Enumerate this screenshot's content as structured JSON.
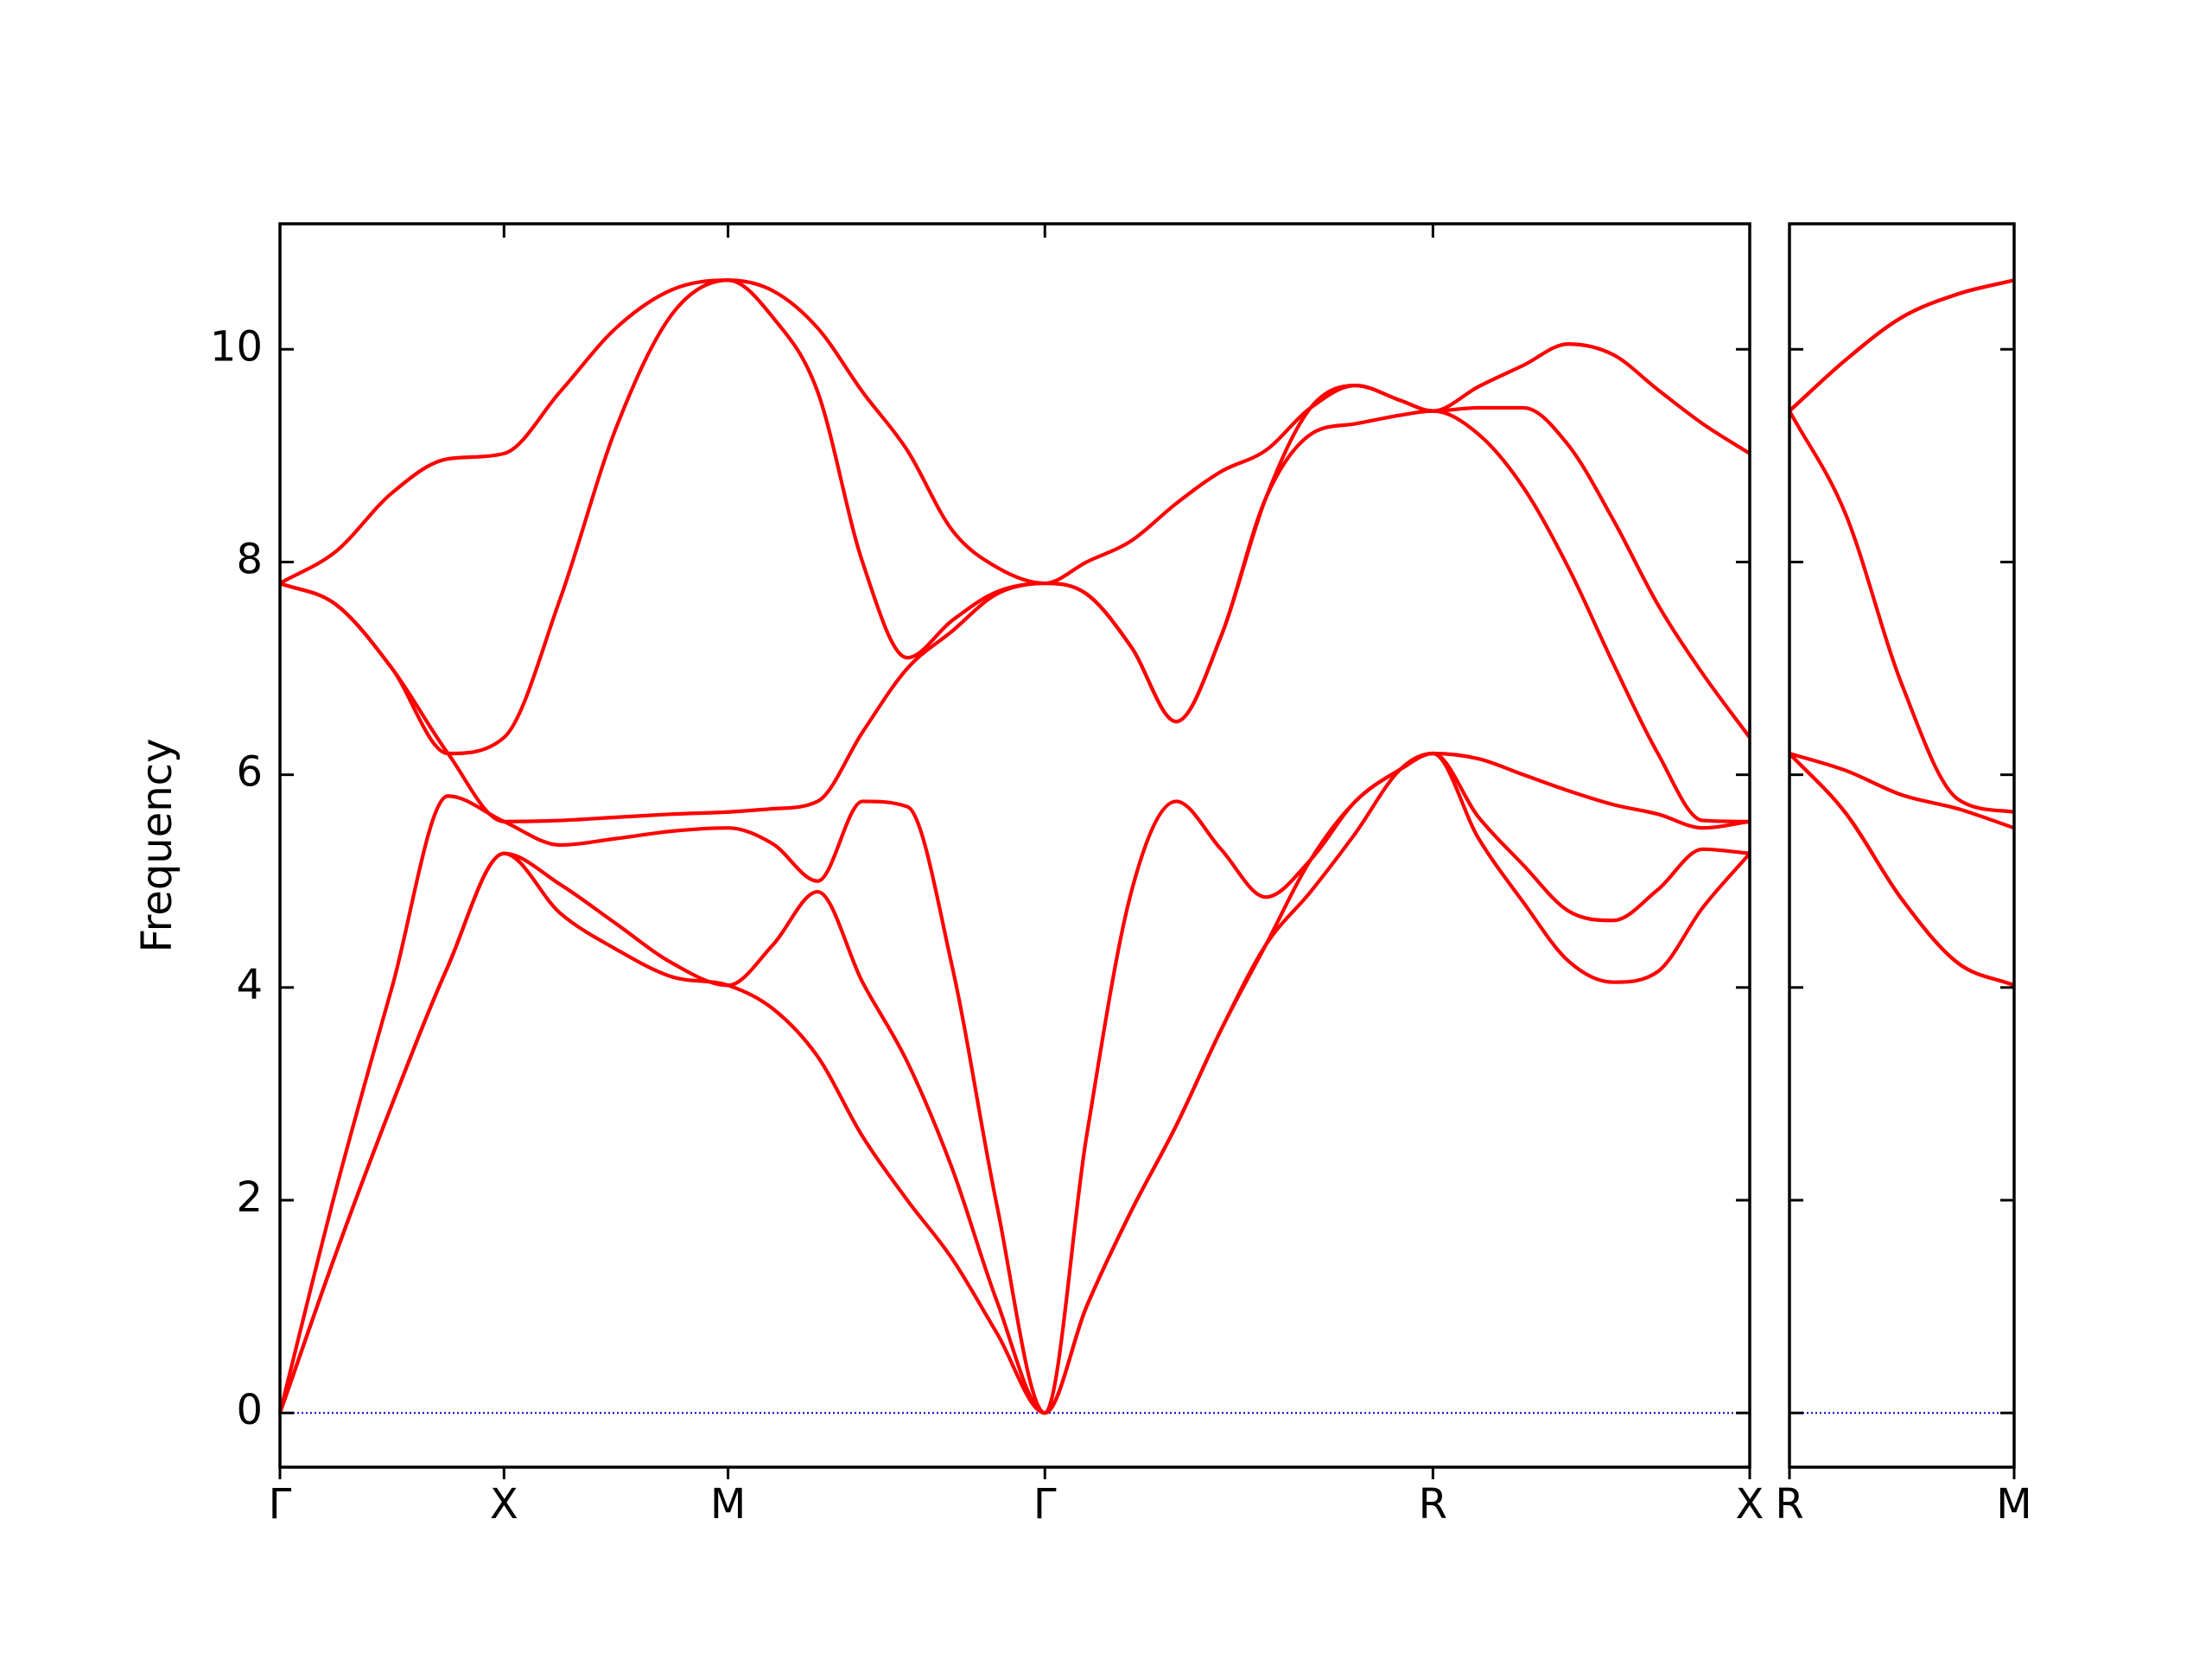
{
  "chart_data": [
    {
      "type": "line",
      "ylabel": "Frequency",
      "x": [
        0,
        0.25,
        0.5,
        0.75,
        1,
        1.25,
        1.5,
        1.75,
        2,
        2.2,
        2.4,
        2.6,
        2.8,
        3.0,
        3.2,
        3.414,
        3.6,
        3.8,
        4.0,
        4.2,
        4.4,
        4.6,
        4.8,
        5.0,
        5.146,
        5.35,
        5.55,
        5.75,
        5.95,
        6.15,
        6.35,
        6.56
      ],
      "series": [
        {
          "color": "#ff0000",
          "values": [
            0,
            1.5,
            2.9,
            4.2,
            5.26,
            4.7,
            4.36,
            4.1,
            4.02,
            3.8,
            3.35,
            2.6,
            2.0,
            1.45,
            0.75,
            0,
            1.0,
            1.9,
            2.7,
            3.6,
            4.4,
            4.9,
            5.45,
            6.05,
            6.2,
            5.4,
            4.8,
            4.25,
            4.05,
            4.15,
            4.75,
            5.26
          ]
        },
        {
          "color": "#ff0000",
          "values": [
            0,
            1.5,
            2.9,
            4.2,
            5.26,
            4.97,
            4.6,
            4.23,
            4.02,
            4.4,
            4.9,
            4.05,
            3.3,
            2.3,
            1.05,
            0,
            1.0,
            1.9,
            2.7,
            3.6,
            4.4,
            5.2,
            5.75,
            6.05,
            6.2,
            5.6,
            5.15,
            4.72,
            4.63,
            4.92,
            5.3,
            5.26
          ]
        },
        {
          "color": "#ff0000",
          "values": [
            0,
            2.1,
            4.0,
            5.8,
            5.56,
            5.34,
            5.4,
            5.47,
            5.5,
            5.35,
            5.0,
            5.75,
            5.7,
            4.2,
            1.95,
            0,
            2.6,
            4.9,
            5.75,
            5.3,
            4.85,
            5.2,
            5.75,
            6.05,
            6.2,
            6.15,
            6.0,
            5.85,
            5.72,
            5.63,
            5.5,
            5.56
          ]
        },
        {
          "color": "#ff0000",
          "values": [
            7.8,
            7.6,
            7.0,
            6.2,
            5.56,
            5.57,
            5.6,
            5.63,
            5.65,
            5.68,
            5.75,
            6.4,
            7.0,
            7.35,
            7.7,
            7.8,
            7.7,
            7.2,
            6.5,
            7.3,
            8.6,
            9.2,
            9.3,
            9.38,
            9.42,
            9.2,
            8.7,
            7.95,
            7.05,
            6.2,
            5.57,
            5.56
          ]
        },
        {
          "color": "#ff0000",
          "values": [
            7.8,
            7.6,
            7.0,
            6.2,
            6.35,
            7.65,
            9.26,
            10.33,
            10.65,
            10.3,
            9.6,
            8.0,
            7.1,
            7.45,
            7.72,
            7.8,
            7.7,
            7.2,
            6.5,
            7.3,
            8.6,
            9.45,
            9.66,
            9.52,
            9.42,
            9.45,
            9.45,
            9.1,
            8.4,
            7.6,
            6.95,
            6.35
          ]
        },
        {
          "color": "#ff0000",
          "values": [
            7.8,
            8.1,
            8.65,
            8.97,
            9.02,
            9.6,
            10.2,
            10.56,
            10.65,
            10.55,
            10.2,
            9.6,
            9.05,
            8.3,
            7.95,
            7.8,
            8.0,
            8.2,
            8.55,
            8.85,
            9.05,
            9.45,
            9.66,
            9.52,
            9.42,
            9.65,
            9.85,
            10.05,
            9.95,
            9.62,
            9.3,
            9.02
          ]
        }
      ],
      "xlim": [
        0,
        6.56
      ],
      "xticks": [
        {
          "value": 0,
          "label": "Γ"
        },
        {
          "value": 1,
          "label": "X"
        },
        {
          "value": 2,
          "label": "M"
        },
        {
          "value": 3.414,
          "label": "Γ"
        },
        {
          "value": 5.146,
          "label": "R"
        },
        {
          "value": 6.56,
          "label": "X"
        }
      ],
      "ylim": [
        -0.51,
        11.18
      ],
      "yticks": [
        0,
        2,
        4,
        6,
        8,
        10
      ],
      "show_ytick_labels": true,
      "hline": 0,
      "hline_color": "#0000cc"
    },
    {
      "type": "line",
      "x": [
        0,
        0.25,
        0.5,
        0.75,
        1
      ],
      "series": [
        {
          "color": "#ff0000",
          "values": [
            6.2,
            5.64,
            4.83,
            4.23,
            4.02
          ]
        },
        {
          "color": "#ff0000",
          "values": [
            6.2,
            5.64,
            4.83,
            4.23,
            4.02
          ]
        },
        {
          "color": "#ff0000",
          "values": [
            6.2,
            6.04,
            5.81,
            5.68,
            5.5
          ]
        },
        {
          "color": "#ff0000",
          "values": [
            9.42,
            8.45,
            6.85,
            5.77,
            5.65
          ]
        },
        {
          "color": "#ff0000",
          "values": [
            9.42,
            9.9,
            10.3,
            10.52,
            10.65
          ]
        },
        {
          "color": "#ff0000",
          "values": [
            9.42,
            9.9,
            10.3,
            10.52,
            10.65
          ]
        }
      ],
      "xlim": [
        0,
        1
      ],
      "xticks": [
        {
          "value": 0,
          "label": "R"
        },
        {
          "value": 1,
          "label": "M"
        }
      ],
      "ylim": [
        -0.51,
        11.18
      ],
      "yticks": [
        0,
        2,
        4,
        6,
        8,
        10
      ],
      "show_ytick_labels": false,
      "hline": 0,
      "hline_color": "#0000cc"
    }
  ]
}
